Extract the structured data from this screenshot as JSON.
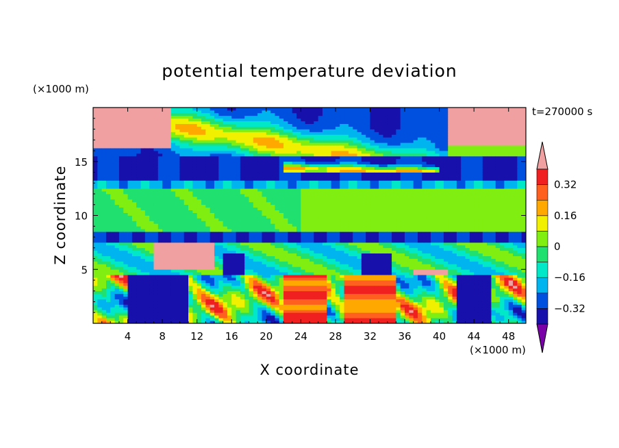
{
  "chart_data": {
    "type": "heatmap",
    "title": "potential temperature deviation",
    "xlabel": "X coordinate",
    "ylabel": "Z coordinate",
    "x_unit_label": "(×1000 m)",
    "y_unit_label": "(×1000 m)",
    "time_label": "t=270000 s",
    "x_ticks": [
      4,
      8,
      12,
      16,
      20,
      24,
      28,
      32,
      36,
      40,
      44,
      48
    ],
    "y_ticks": [
      5,
      10,
      15
    ],
    "xlim": [
      0,
      50
    ],
    "ylim": [
      0,
      20
    ],
    "colorbar": {
      "labels": [
        "0.32",
        "0.16",
        "0",
        "-0.16",
        "-0.32"
      ],
      "label_texts": [
        "0.32",
        "0.16",
        "0",
        "−0.16",
        "−0.32"
      ],
      "levels": [
        -0.4,
        -0.32,
        -0.24,
        -0.16,
        -0.08,
        0,
        0.08,
        0.16,
        0.24,
        0.32,
        0.4
      ],
      "colors": [
        "#7a00a8",
        "#1810aa",
        "#0050e0",
        "#00b4f0",
        "#00e8c8",
        "#20e070",
        "#80ee10",
        "#f0f000",
        "#ffa800",
        "#ff6020",
        "#f02020",
        "#f0a0a0"
      ],
      "extend": "both"
    },
    "field": {
      "description_levels": "rows from z=0 to z=20 (×1000 m), columns from x=0 to x=50",
      "dx": 1,
      "dz": 1
    }
  }
}
